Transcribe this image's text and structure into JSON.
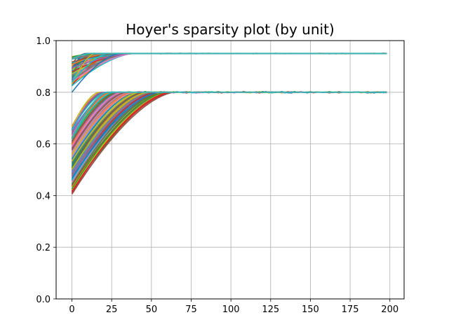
{
  "chart_data": {
    "type": "line",
    "title": "Hoyer's sparsity plot (by unit)",
    "xlabel": "",
    "ylabel": "",
    "xlim": [
      -9.95,
      208.95
    ],
    "ylim": [
      0.0,
      1.0
    ],
    "xticks": [
      0,
      25,
      50,
      75,
      100,
      125,
      150,
      175,
      200
    ],
    "yticks": [
      0.0,
      0.2,
      0.4,
      0.6,
      0.8,
      1.0
    ],
    "xtick_labels": [
      "0",
      "25",
      "50",
      "75",
      "100",
      "125",
      "150",
      "175",
      "200"
    ],
    "ytick_labels": [
      "0.0",
      "0.2",
      "0.4",
      "0.6",
      "0.8",
      "1.0"
    ],
    "grid": true,
    "x_range": [
      0,
      199
    ],
    "upper_group": {
      "plateau": 0.95,
      "start_min": 0.8,
      "start_max": 0.94,
      "settle_epoch_max": 40,
      "series_count": 60
    },
    "lower_group": {
      "plateau": 0.8,
      "start_min": 0.4,
      "start_max": 0.67,
      "settle_epoch_min": 15,
      "settle_epoch_max": 62,
      "series_count": 140
    },
    "colors": [
      "#1f77b4",
      "#ff7f0e",
      "#2ca02c",
      "#d62728",
      "#9467bd",
      "#8c564b",
      "#e377c2",
      "#7f7f7f",
      "#bcbd22",
      "#17becf"
    ],
    "top_color": "#3cb3b0"
  }
}
